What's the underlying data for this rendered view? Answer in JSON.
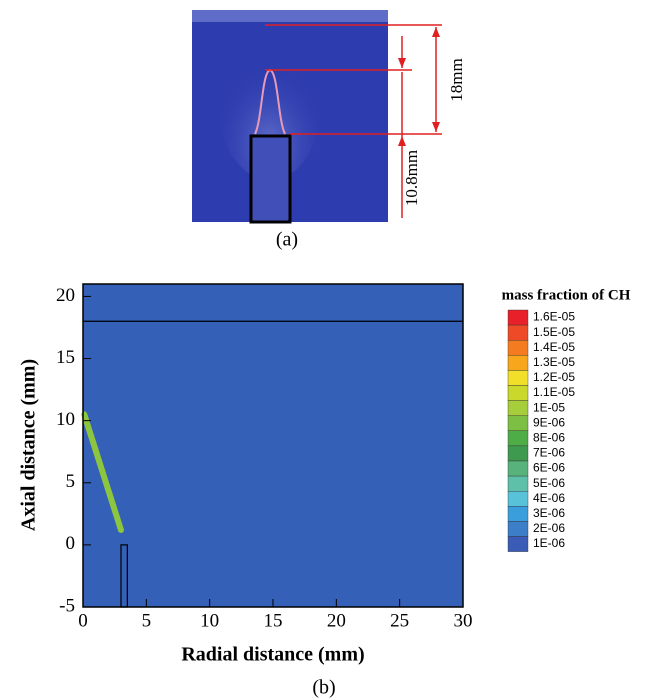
{
  "panel_a": {
    "dimension_outer": "18mm",
    "dimension_inner": "10.8mm",
    "caption": "(a)"
  },
  "chart_data": {
    "type": "contour",
    "xlabel": "Radial distance (mm)",
    "ylabel": "Axial distance (mm)",
    "xlim": [
      0,
      30
    ],
    "ylim": [
      -5,
      21
    ],
    "xticks": [
      0,
      5,
      10,
      15,
      20,
      25,
      30
    ],
    "yticks": [
      -5,
      0,
      5,
      10,
      15,
      20
    ],
    "background_color": "#3560b8",
    "reference_line_y": 18,
    "electrode": {
      "x": [
        3,
        3.5
      ],
      "y": [
        -5,
        0
      ]
    },
    "flame_front": {
      "x": [
        0.1,
        3
      ],
      "y": [
        10.5,
        1.2
      ],
      "color": "#8cc63f"
    },
    "colorbar": {
      "title": "mass fraction of CH",
      "levels": [
        {
          "value": 1.6e-05,
          "label": "1.6E-05"
        },
        {
          "value": 1.5e-05,
          "label": "1.5E-05"
        },
        {
          "value": 1.4e-05,
          "label": "1.4E-05"
        },
        {
          "value": 1.3e-05,
          "label": "1.3E-05"
        },
        {
          "value": 1.2e-05,
          "label": "1.2E-05"
        },
        {
          "value": 1.1e-05,
          "label": "1.1E-05"
        },
        {
          "value": 1e-05,
          "label": "1E-05"
        },
        {
          "value": 9e-06,
          "label": "9E-06"
        },
        {
          "value": 8e-06,
          "label": "8E-06"
        },
        {
          "value": 7e-06,
          "label": "7E-06"
        },
        {
          "value": 6e-06,
          "label": "6E-06"
        },
        {
          "value": 5e-06,
          "label": "5E-06"
        },
        {
          "value": 4e-06,
          "label": "4E-06"
        },
        {
          "value": 3e-06,
          "label": "3E-06"
        },
        {
          "value": 2e-06,
          "label": "2E-06"
        },
        {
          "value": 1e-06,
          "label": "1E-06"
        }
      ],
      "colors": [
        "#e8202a",
        "#ee4a28",
        "#f47b20",
        "#f8a61c",
        "#f2df2a",
        "#c9d82a",
        "#a6cd3a",
        "#7cbf43",
        "#4fad48",
        "#3d9a4e",
        "#58b27c",
        "#5ec0a8",
        "#58c2d8",
        "#3a9edc",
        "#3c7ec8",
        "#3a5cb6"
      ]
    },
    "caption": "(b)"
  }
}
